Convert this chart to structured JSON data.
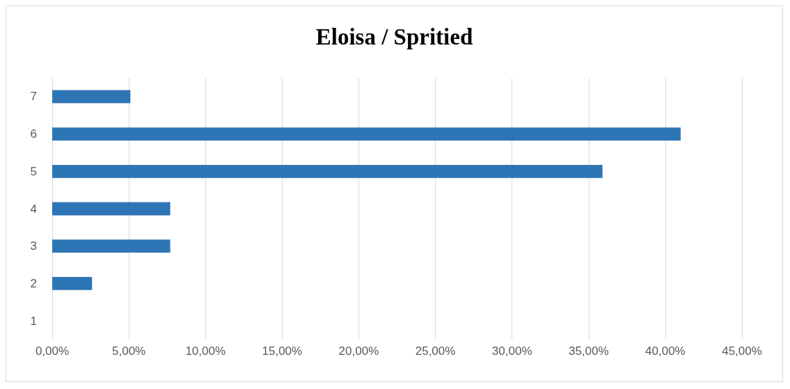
{
  "chart_data": {
    "type": "bar",
    "orientation": "horizontal",
    "title": "Eloisa / Spritied",
    "categories": [
      "7",
      "6",
      "5",
      "4",
      "3",
      "2",
      "1"
    ],
    "values": [
      5.1,
      41.0,
      35.9,
      7.7,
      7.7,
      2.6,
      0
    ],
    "color": "#2e75b6",
    "xlim": [
      0,
      45
    ],
    "xticks": [
      {
        "value": 0,
        "label": "0,00%"
      },
      {
        "value": 5,
        "label": "5,00%"
      },
      {
        "value": 10,
        "label": "10,00%"
      },
      {
        "value": 15,
        "label": "15,00%"
      },
      {
        "value": 20,
        "label": "20,00%"
      },
      {
        "value": 25,
        "label": "25,00%"
      },
      {
        "value": 30,
        "label": "30,00%"
      },
      {
        "value": 35,
        "label": "35,00%"
      },
      {
        "value": 40,
        "label": "40,00%"
      },
      {
        "value": 45,
        "label": "45,00%"
      }
    ],
    "grid": "x"
  }
}
